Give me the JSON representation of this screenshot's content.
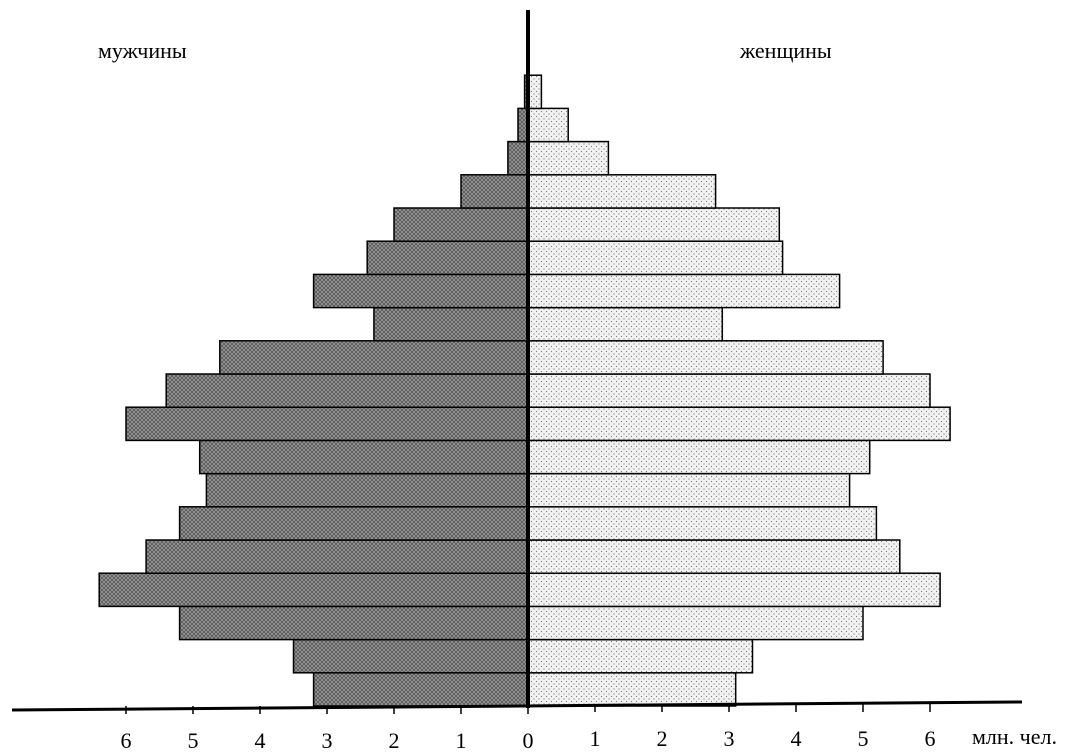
{
  "chart_data": {
    "type": "bar",
    "orientation": "horizontal-pyramid",
    "group_labels": {
      "left": "мужчины",
      "right": "женщины"
    },
    "unit_label": "млн. чел.",
    "x_ticks_left": [
      "6",
      "5",
      "4",
      "3",
      "2",
      "1",
      "0"
    ],
    "x_ticks_right": [
      "1",
      "2",
      "3",
      "4",
      "5",
      "6"
    ],
    "xlim": [
      0,
      6.5
    ],
    "series": [
      {
        "name": "мужчины",
        "values": [
          3.2,
          3.5,
          5.2,
          6.4,
          5.7,
          5.2,
          4.8,
          4.9,
          6.0,
          5.4,
          4.6,
          2.3,
          3.2,
          2.4,
          2.0,
          1.0,
          0.3,
          0.15,
          0.05
        ]
      },
      {
        "name": "женщины",
        "values": [
          3.1,
          3.35,
          5.0,
          6.15,
          5.55,
          5.2,
          4.8,
          5.1,
          6.3,
          6.0,
          5.3,
          2.9,
          4.65,
          3.8,
          3.75,
          2.8,
          1.2,
          0.6,
          0.2
        ]
      }
    ],
    "colors": {
      "male_fill": "#8a8a8a",
      "female_fill": "#e8e8e8",
      "outline": "#000000"
    },
    "grid": false,
    "legend": "none"
  }
}
